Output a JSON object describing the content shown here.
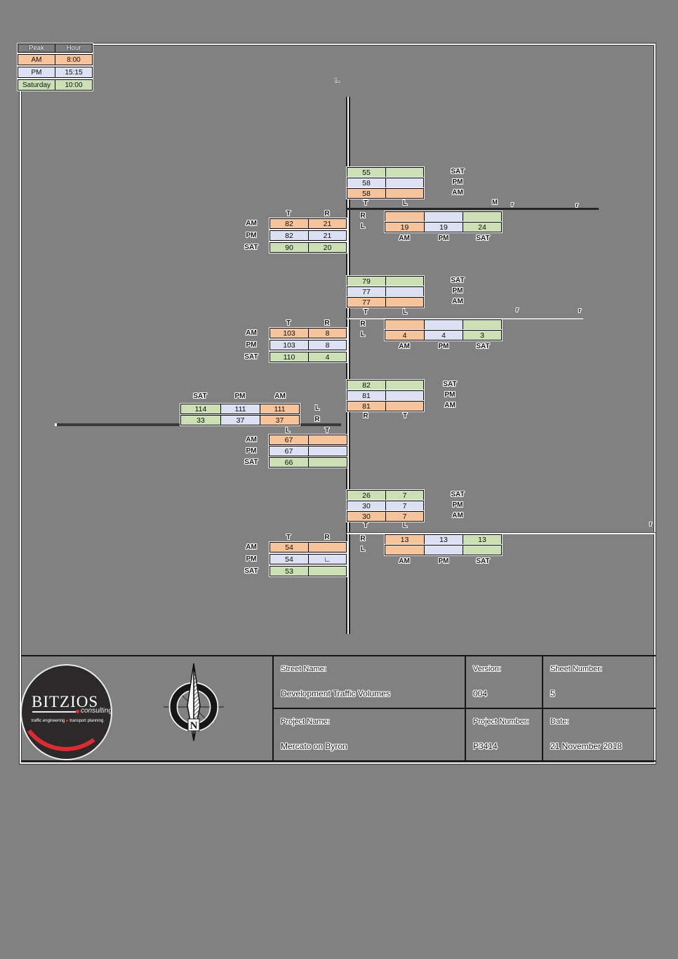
{
  "legend": {
    "headers": [
      "Peak",
      "Hour"
    ],
    "rows": [
      {
        "peak": "AM",
        "hour": "8:00",
        "period": "am"
      },
      {
        "peak": "PM",
        "hour": "15:15",
        "period": "pm"
      },
      {
        "peak": "Saturday",
        "hour": "10:00",
        "period": "sat"
      }
    ]
  },
  "colors": {
    "am": "#F6C49B",
    "pm": "#DBE0F2",
    "sat": "#CBE1B5",
    "background": "#818181",
    "road_dark": "#262626",
    "accent_red": "#DE2A30"
  },
  "stray_mark": "∟",
  "intersections": [
    {
      "name": "intersection-1",
      "north": {
        "headers": [
          "T",
          "L"
        ],
        "rows": [
          {
            "period": "sat",
            "label": "SAT",
            "cells": [
              "55",
              ""
            ]
          },
          {
            "period": "pm",
            "label": "PM",
            "cells": [
              "58",
              ""
            ]
          },
          {
            "period": "am",
            "label": "AM",
            "cells": [
              "58",
              ""
            ]
          }
        ]
      },
      "east": {
        "row_labels": [
          "R",
          "L"
        ],
        "footers": [
          "AM",
          "PM",
          "SAT"
        ],
        "rows": [
          [
            {
              "period": "am",
              "v": ""
            },
            {
              "period": "pm",
              "v": ""
            },
            {
              "period": "sat",
              "v": ""
            }
          ],
          [
            {
              "period": "am",
              "v": "19"
            },
            {
              "period": "pm",
              "v": "19"
            },
            {
              "period": "sat",
              "v": "24"
            }
          ]
        ]
      },
      "west": {
        "headers": [
          "T",
          "R"
        ],
        "rows": [
          {
            "period": "am",
            "label": "AM",
            "cells": [
              "82",
              "21"
            ]
          },
          {
            "period": "pm",
            "label": "PM",
            "cells": [
              "82",
              "21"
            ]
          },
          {
            "period": "sat",
            "label": "SAT",
            "cells": [
              "90",
              "20"
            ]
          }
        ]
      },
      "fragments": [
        "M",
        "r",
        "r"
      ]
    },
    {
      "name": "intersection-2",
      "north": {
        "headers": [
          "T",
          "L"
        ],
        "rows": [
          {
            "period": "sat",
            "label": "SAT",
            "cells": [
              "79",
              ""
            ]
          },
          {
            "period": "pm",
            "label": "PM",
            "cells": [
              "77",
              ""
            ]
          },
          {
            "period": "am",
            "label": "AM",
            "cells": [
              "77",
              ""
            ]
          }
        ]
      },
      "east": {
        "row_labels": [
          "R",
          "L"
        ],
        "footers": [
          "AM",
          "PM",
          "SAT"
        ],
        "rows": [
          [
            {
              "period": "am",
              "v": ""
            },
            {
              "period": "pm",
              "v": ""
            },
            {
              "period": "sat",
              "v": ""
            }
          ],
          [
            {
              "period": "am",
              "v": "4"
            },
            {
              "period": "pm",
              "v": "4"
            },
            {
              "period": "sat",
              "v": "3"
            }
          ]
        ]
      },
      "west": {
        "headers": [
          "T",
          "R"
        ],
        "rows": [
          {
            "period": "am",
            "label": "AM",
            "cells": [
              "103",
              "8"
            ]
          },
          {
            "period": "pm",
            "label": "PM",
            "cells": [
              "103",
              "8"
            ]
          },
          {
            "period": "sat",
            "label": "SAT",
            "cells": [
              "110",
              "4"
            ]
          }
        ]
      },
      "fragments": [
        "r",
        "r"
      ]
    },
    {
      "name": "intersection-3",
      "top": {
        "headers": [
          "SAT",
          "PM",
          "AM"
        ],
        "row_labels": [
          "L",
          "R"
        ],
        "rows": [
          [
            {
              "period": "sat",
              "v": "114"
            },
            {
              "period": "pm",
              "v": "111"
            },
            {
              "period": "am",
              "v": "111"
            }
          ],
          [
            {
              "period": "sat",
              "v": "33"
            },
            {
              "period": "pm",
              "v": "37"
            },
            {
              "period": "am",
              "v": "37"
            }
          ]
        ]
      },
      "south": {
        "headers": [
          "L",
          "T"
        ],
        "rows": [
          {
            "period": "am",
            "label": "AM",
            "cells": [
              "67",
              ""
            ]
          },
          {
            "period": "pm",
            "label": "PM",
            "cells": [
              "67",
              ""
            ]
          },
          {
            "period": "sat",
            "label": "SAT",
            "cells": [
              "66",
              ""
            ]
          }
        ]
      },
      "east_stack": {
        "footers": [
          "R",
          "T"
        ],
        "rows": [
          {
            "period": "sat",
            "label": "SAT",
            "cells": [
              "82",
              ""
            ]
          },
          {
            "period": "pm",
            "label": "PM",
            "cells": [
              "81",
              ""
            ]
          },
          {
            "period": "am",
            "label": "AM",
            "cells": [
              "81",
              ""
            ]
          }
        ]
      },
      "fragments": []
    },
    {
      "name": "intersection-4",
      "north": {
        "headers": [
          "T",
          "L"
        ],
        "rows": [
          {
            "period": "sat",
            "label": "SAT",
            "cells": [
              "26",
              "7"
            ]
          },
          {
            "period": "pm",
            "label": "PM",
            "cells": [
              "30",
              "7"
            ]
          },
          {
            "period": "am",
            "label": "AM",
            "cells": [
              "30",
              "7"
            ]
          }
        ]
      },
      "east": {
        "row_labels": [
          "R",
          "L"
        ],
        "footers": [
          "AM",
          "PM",
          "SAT"
        ],
        "rows": [
          [
            {
              "period": "am",
              "v": "13"
            },
            {
              "period": "pm",
              "v": "13"
            },
            {
              "period": "sat",
              "v": "13"
            }
          ],
          [
            {
              "period": "am",
              "v": ""
            },
            {
              "period": "pm",
              "v": ""
            },
            {
              "period": "sat",
              "v": ""
            }
          ]
        ]
      },
      "west": {
        "headers": [
          "T",
          "R"
        ],
        "rows": [
          {
            "period": "am",
            "label": "AM",
            "cells": [
              "54",
              ""
            ]
          },
          {
            "period": "pm",
            "label": "PM",
            "cells": [
              "54",
              "∟"
            ]
          },
          {
            "period": "sat",
            "label": "SAT",
            "cells": [
              "53",
              ""
            ]
          }
        ]
      },
      "fragments": [
        "r"
      ]
    }
  ],
  "title_block": {
    "street_name_label": "Street Name:",
    "street_name": "Development Traffic Volumes",
    "version_label": "Version:",
    "version": "004",
    "sheet_number_label": "Sheet Number:",
    "sheet_number": "5",
    "project_name_label": "Project Name:",
    "project_name": "Mercato on Byron",
    "project_number_label": "Project Number:",
    "project_number": "P3414",
    "date_label": "Date:",
    "date": "21 November 2018"
  },
  "logo": {
    "brand": "BITZIOS",
    "sub": "consulting",
    "tagline_left": "traffic engineering",
    "tagline_right": "transport planning"
  },
  "compass": {
    "letter": "N"
  }
}
